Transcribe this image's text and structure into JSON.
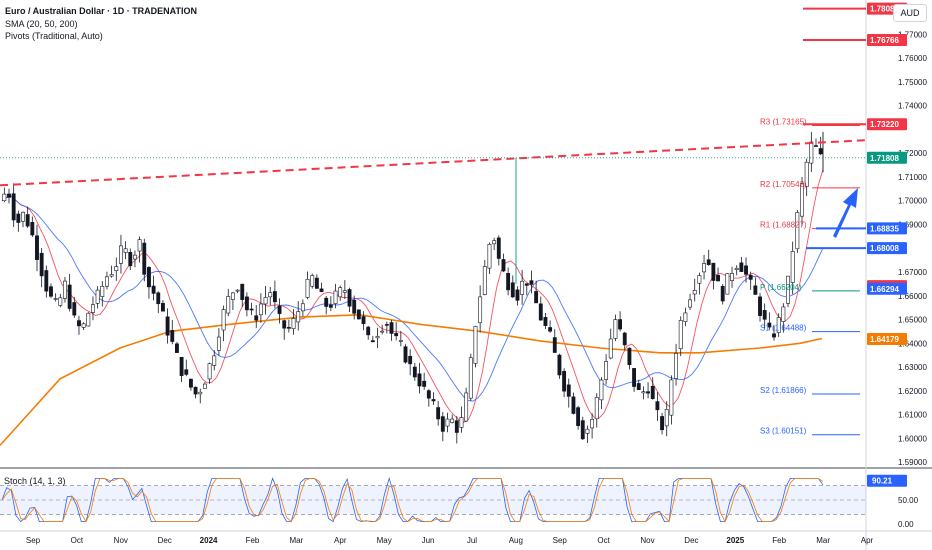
{
  "header": {
    "title": "Euro / Australian Dollar · 1D · TRADENATION",
    "sma": "SMA (20, 50, 200)",
    "pivots": "Pivots (Traditional, Auto)",
    "currency": "AUD"
  },
  "stoch": {
    "label": "Stoch (14, 1, 3)",
    "value": "90.21"
  },
  "chart_data": {
    "type": "candlestick",
    "y_ticks": [
      "1.77000",
      "1.76000",
      "1.75000",
      "1.74000",
      "1.72000",
      "1.71000",
      "1.70000",
      "1.69000",
      "1.67000",
      "1.66000",
      "1.65000",
      "1.64000",
      "1.63000",
      "1.62000",
      "1.61000",
      "1.60000",
      "1.59000"
    ],
    "y_tick_values": [
      1.77,
      1.76,
      1.75,
      1.74,
      1.72,
      1.71,
      1.7,
      1.69,
      1.67,
      1.66,
      1.65,
      1.64,
      1.63,
      1.62,
      1.61,
      1.6,
      1.59
    ],
    "ylim": [
      1.5875,
      1.7845
    ],
    "x_ticks": [
      "Sep",
      "Oct",
      "Nov",
      "Dec",
      "2024",
      "Feb",
      "Mar",
      "Apr",
      "May",
      "Jun",
      "Jul",
      "Aug",
      "Sep",
      "Oct",
      "Nov",
      "Dec",
      "2025",
      "Feb",
      "Mar",
      "Apr"
    ],
    "price_tags": [
      {
        "label": "1.78085",
        "value": 1.78085,
        "color": "#f23645"
      },
      {
        "label": "1.76766",
        "value": 1.76766,
        "color": "#f23645"
      },
      {
        "label": "1.73220",
        "value": 1.7322,
        "color": "#f23645"
      },
      {
        "label": "1.71808",
        "value": 1.71808,
        "color": "#089981"
      },
      {
        "label": "1.68835",
        "value": 1.68835,
        "color": "#2962ff"
      },
      {
        "label": "1.68008",
        "value": 1.68008,
        "color": "#2962ff"
      },
      {
        "label": "1.66405",
        "value": 1.66405,
        "color": "#f23645"
      },
      {
        "label": "1.66294",
        "value": 1.66294,
        "color": "#2962ff"
      },
      {
        "label": "1.64179",
        "value": 1.64179,
        "color": "#f57c00"
      }
    ],
    "pivots": [
      {
        "label": "R3 (1.73165)",
        "value": 1.73165,
        "color": "#f23645"
      },
      {
        "label": "R2 (1.70542)",
        "value": 1.70542,
        "color": "#f23645"
      },
      {
        "label": "R1 (1.68827)",
        "value": 1.68827,
        "color": "#f23645"
      },
      {
        "label": "P (1.66204)",
        "value": 1.66204,
        "color": "#089981"
      },
      {
        "label": "S1 (1.64488)",
        "value": 1.64488,
        "color": "#2962ff"
      },
      {
        "label": "S2 (1.61866)",
        "value": 1.61866,
        "color": "#2962ff"
      },
      {
        "label": "S3 (1.60151)",
        "value": 1.60151,
        "color": "#2962ff"
      }
    ],
    "trendline": {
      "start": 1.7065,
      "end": 1.7255
    },
    "current_price": 1.71808,
    "price_path": [
      1.7,
      1.705,
      1.69,
      1.695,
      1.685,
      1.672,
      1.66,
      1.655,
      1.665,
      1.65,
      1.645,
      1.655,
      1.66,
      1.668,
      1.672,
      1.68,
      1.675,
      1.683,
      1.665,
      1.66,
      1.65,
      1.64,
      1.63,
      1.623,
      1.618,
      1.625,
      1.635,
      1.65,
      1.66,
      1.665,
      1.655,
      1.65,
      1.658,
      1.662,
      1.65,
      1.645,
      1.65,
      1.66,
      1.668,
      1.66,
      1.655,
      1.66,
      1.663,
      1.655,
      1.65,
      1.64,
      1.645,
      1.65,
      1.642,
      1.638,
      1.63,
      1.625,
      1.618,
      1.612,
      1.605,
      1.608,
      1.603,
      1.62,
      1.65,
      1.67,
      1.688,
      1.672,
      1.665,
      1.66,
      1.668,
      1.66,
      1.65,
      1.643,
      1.63,
      1.62,
      1.612,
      1.602,
      1.606,
      1.62,
      1.636,
      1.65,
      1.64,
      1.625,
      1.618,
      1.622,
      1.61,
      1.603,
      1.63,
      1.65,
      1.66,
      1.668,
      1.677,
      1.668,
      1.66,
      1.67,
      1.675,
      1.668,
      1.66,
      1.65,
      1.642,
      1.65,
      1.665,
      1.69,
      1.712,
      1.725,
      1.718
    ],
    "stoch_ticks": [
      "50.00",
      "0.00"
    ],
    "stoch_tick_values": [
      50,
      0
    ]
  }
}
